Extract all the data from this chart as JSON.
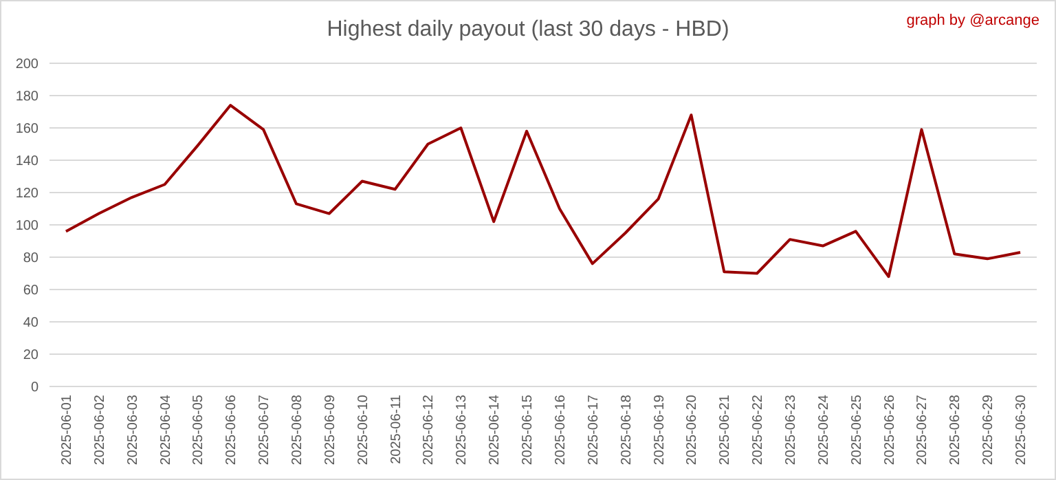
{
  "chart_data": {
    "type": "line",
    "title": "Highest daily payout (last 30 days - HBD)",
    "annotations": [
      "graph by @arcange"
    ],
    "categories": [
      "2025-06-01",
      "2025-06-02",
      "2025-06-03",
      "2025-06-04",
      "2025-06-05",
      "2025-06-06",
      "2025-06-07",
      "2025-06-08",
      "2025-06-09",
      "2025-06-10",
      "2025-06-11",
      "2025-06-12",
      "2025-06-13",
      "2025-06-14",
      "2025-06-15",
      "2025-06-16",
      "2025-06-17",
      "2025-06-18",
      "2025-06-19",
      "2025-06-20",
      "2025-06-21",
      "2025-06-22",
      "2025-06-23",
      "2025-06-24",
      "2025-06-25",
      "2025-06-26",
      "2025-06-27",
      "2025-06-28",
      "2025-06-29",
      "2025-06-30"
    ],
    "series": [
      {
        "color": "#990000",
        "values": [
          96,
          107,
          117,
          125,
          149,
          174,
          159,
          113,
          107,
          127,
          122,
          150,
          160,
          102,
          158,
          110,
          76,
          95,
          116,
          168,
          71,
          70,
          91,
          87,
          96,
          68,
          159,
          82,
          79,
          83
        ]
      }
    ],
    "ylim": [
      0,
      200
    ],
    "yticks": [
      0,
      20,
      40,
      60,
      80,
      100,
      120,
      140,
      160,
      180,
      200
    ],
    "grid": "y",
    "marker": "none",
    "line_style": "solid"
  }
}
